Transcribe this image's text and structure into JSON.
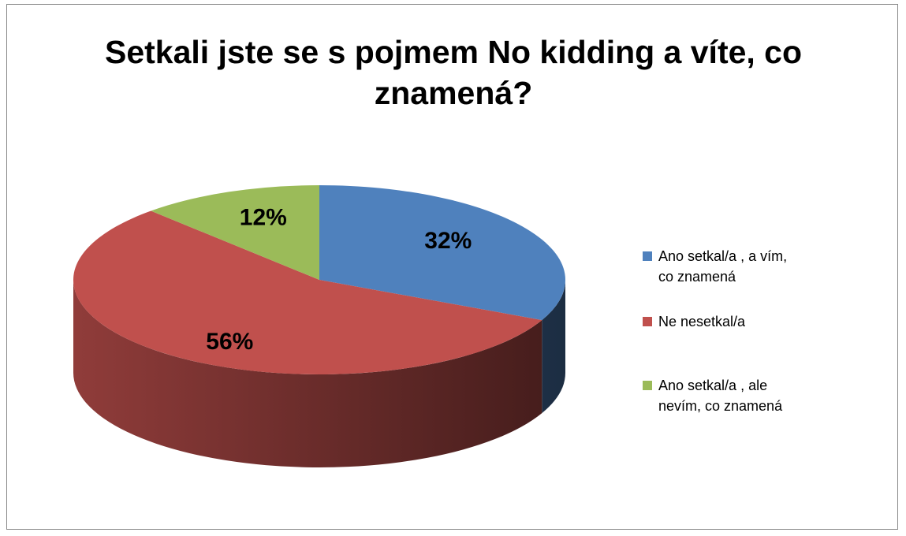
{
  "chart_data": {
    "type": "pie3d",
    "title": "Setkali jste se s pojmem No kidding a víte, co znamená?",
    "categories": [
      "Ano setkal/a , a vím, co znamená",
      "Ne nesetkal/a",
      "Ano setkal/a , ale nevím, co znamená"
    ],
    "values": [
      32,
      56,
      12
    ],
    "value_labels": [
      "32%",
      "56%",
      "12%"
    ],
    "colors": [
      "#4f81bd",
      "#c0504d",
      "#9bbb59"
    ],
    "legend": "right"
  }
}
